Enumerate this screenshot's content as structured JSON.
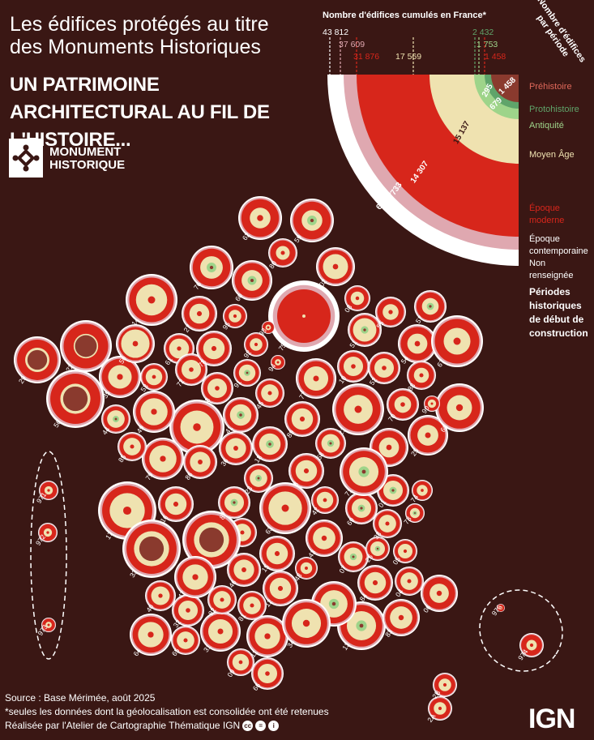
{
  "title": "Les édifices protégés au titre des Monuments Historiques",
  "subtitle": "UN PATRIMOINE ARCHITECTURAL AU FIL DE L'HISTOIRE...",
  "logo": {
    "line1": "MONUMENT",
    "line2": "HISTORIQUE"
  },
  "cumulative": {
    "title": "Nombre d'édifices cumulés en France*",
    "values": [
      "43 812",
      "37 609",
      "31 876",
      "17 569",
      "2 432",
      "1 753",
      "1 458"
    ]
  },
  "per_period_title": "Nombre d'édifices par période",
  "per_period_values": [
    "1 458",
    "295",
    "679",
    "15 137",
    "14 307",
    "5 733",
    "6 203"
  ],
  "periods": [
    {
      "label": "Préhistoire",
      "color": "#8a3a2e"
    },
    {
      "label": "Protohistoire",
      "color": "#5fa46a"
    },
    {
      "label": "Antiquité",
      "color": "#9ed48a"
    },
    {
      "label": "Moyen Âge",
      "color": "#efe2b0"
    },
    {
      "label": "Époque moderne",
      "color": "#d7261b"
    },
    {
      "label": "Époque contemporaine",
      "color": "#dfa8b0"
    },
    {
      "label": "Non renseignée",
      "color": "#ffffff"
    }
  ],
  "legend_title": "Périodes historiques de début de construction",
  "departments": [
    "01",
    "02",
    "03",
    "04",
    "05",
    "06",
    "07",
    "08",
    "09",
    "10",
    "11",
    "12",
    "13",
    "14",
    "15",
    "16",
    "17",
    "18",
    "19",
    "21",
    "22",
    "23",
    "24",
    "25",
    "26",
    "27",
    "28",
    "29",
    "2A",
    "2B",
    "30",
    "31",
    "32",
    "33",
    "34",
    "35",
    "36",
    "37",
    "38",
    "39",
    "40",
    "41",
    "42",
    "43",
    "44",
    "45",
    "46",
    "47",
    "48",
    "49",
    "50",
    "51",
    "52",
    "53",
    "54",
    "55",
    "56",
    "57",
    "58",
    "59",
    "60",
    "61",
    "62",
    "63",
    "64",
    "65",
    "66",
    "67",
    "68",
    "69",
    "70",
    "71",
    "72",
    "73",
    "74",
    "75",
    "76",
    "77",
    "78",
    "79",
    "80",
    "81",
    "82",
    "83",
    "84",
    "85",
    "86",
    "87",
    "88",
    "89",
    "90",
    "91",
    "92",
    "93",
    "94",
    "95",
    "971",
    "972",
    "973",
    "974",
    "976"
  ],
  "footer": {
    "source": "Source : Base Mérimée, août 2025",
    "note": "*seules les données dont la géolocalisation est consolidée ont été retenues",
    "credit": "Réalisée par l'Atelier de Cartographie Thématique IGN"
  },
  "brand": "IGN"
}
